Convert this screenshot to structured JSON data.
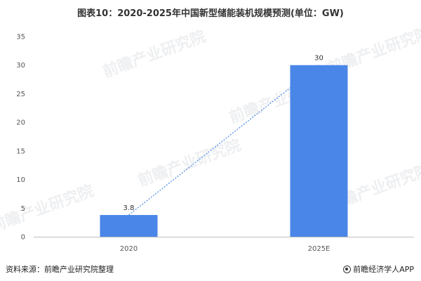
{
  "chart_data": {
    "type": "bar",
    "title": "图表10：2020-2025年中国新型储能装机规模预测(单位：GW)",
    "categories": [
      "2020",
      "2025E"
    ],
    "values": [
      3.8,
      30
    ],
    "data_labels": [
      "3.8",
      "30"
    ],
    "ylim": [
      0,
      35
    ],
    "yticks": [
      0,
      5,
      10,
      15,
      20,
      25,
      30,
      35
    ],
    "trendline": true,
    "grid": false,
    "bar_color": "#4a86e8",
    "trend_color": "#4a86e8"
  },
  "footer": {
    "source": "资料来源：前瞻产业研究院整理",
    "brand": "前瞻经济学人APP"
  },
  "watermark": "前瞻产业研究院"
}
